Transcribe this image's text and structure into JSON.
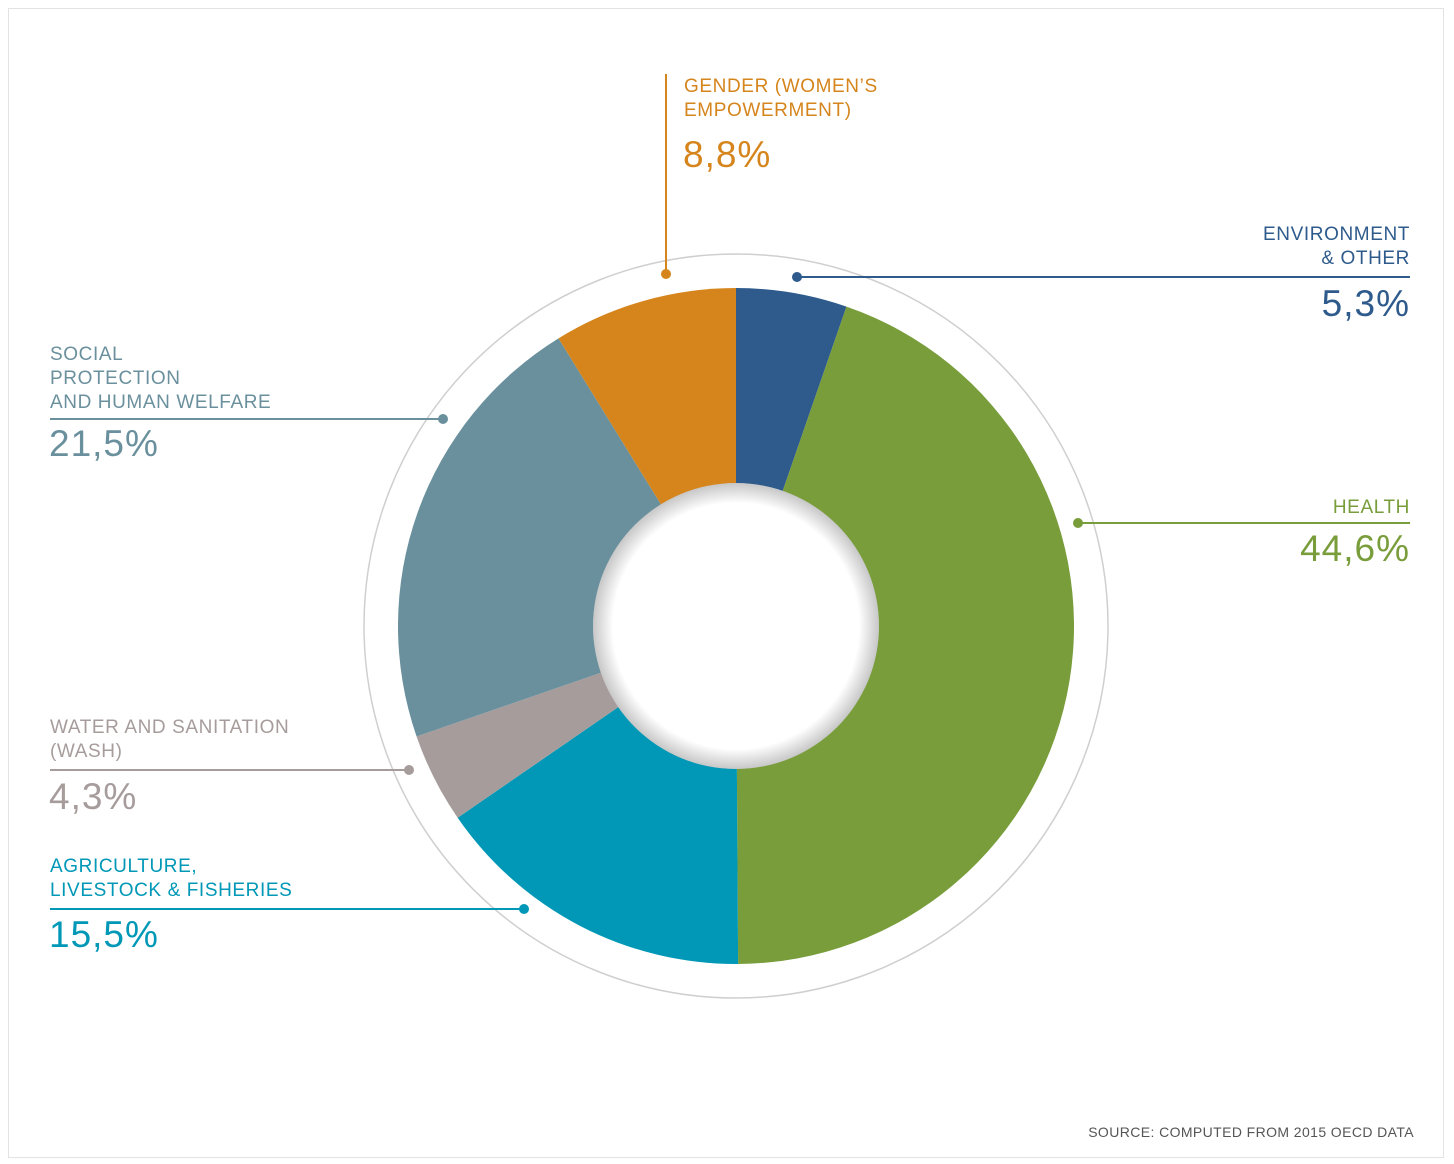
{
  "chart_data": {
    "type": "pie",
    "donut": true,
    "slices": [
      {
        "id": "environment",
        "label_lines": [
          "ENVIRONMENT",
          "& OTHER"
        ],
        "value": 5.3,
        "value_label": "5,3%",
        "color": "#2e5b8c"
      },
      {
        "id": "health",
        "label_lines": [
          "HEALTH"
        ],
        "value": 44.6,
        "value_label": "44,6%",
        "color": "#789d3a"
      },
      {
        "id": "agriculture",
        "label_lines": [
          "AGRICULTURE,",
          "LIVESTOCK & FISHERIES"
        ],
        "value": 15.5,
        "value_label": "15,5%",
        "color": "#0098b6"
      },
      {
        "id": "water",
        "label_lines": [
          "WATER AND SANITATION",
          "(WASH)"
        ],
        "value": 4.3,
        "value_label": "4,3%",
        "color": "#a69c9b"
      },
      {
        "id": "social",
        "label_lines": [
          "SOCIAL",
          "PROTECTION",
          "AND HUMAN WELFARE"
        ],
        "value": 21.5,
        "value_label": "21,5%",
        "color": "#6a909d"
      },
      {
        "id": "gender",
        "label_lines": [
          "GENDER (WOMEN’S",
          "EMPOWERMENT)"
        ],
        "value": 8.8,
        "value_label": "8,8%",
        "color": "#d5851c"
      }
    ]
  },
  "source": "SOURCE: COMPUTED FROM 2015 OECD DATA"
}
